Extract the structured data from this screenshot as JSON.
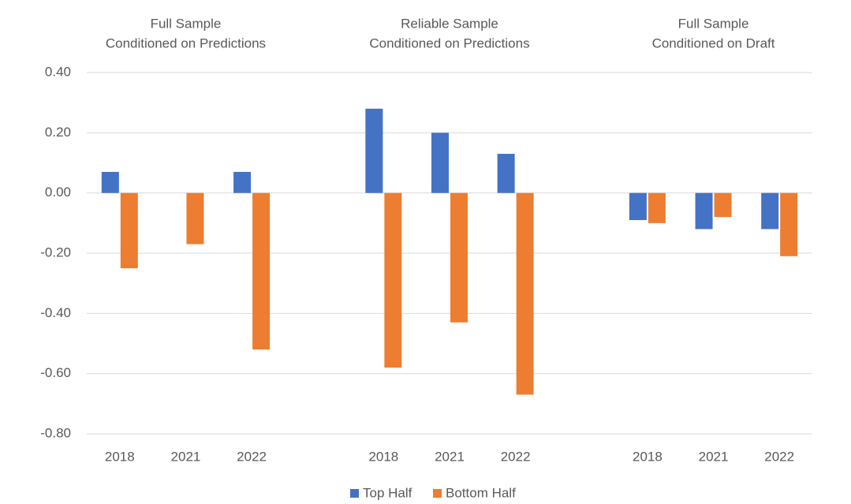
{
  "chart_data": {
    "type": "bar",
    "panels": [
      {
        "title": [
          "Full Sample",
          "Conditioned on Predictions"
        ]
      },
      {
        "title": [
          "Reliable Sample",
          "Conditioned on Predictions"
        ]
      },
      {
        "title": [
          "Full Sample",
          "Conditioned on Draft"
        ]
      }
    ],
    "categories": [
      "2018",
      "2021",
      "2022",
      "2018",
      "2021",
      "2022",
      "2018",
      "2021",
      "2022"
    ],
    "series": [
      {
        "name": "Top Half",
        "color": "#4472c4",
        "values": [
          0.07,
          0,
          0.07,
          0.28,
          0.2,
          0.13,
          -0.09,
          -0.12,
          -0.12
        ]
      },
      {
        "name": "Bottom Half",
        "color": "#ed7d31",
        "values": [
          -0.25,
          -0.17,
          -0.52,
          -0.58,
          -0.43,
          -0.67,
          -0.1,
          -0.08,
          -0.21
        ]
      }
    ],
    "ylim": [
      -0.8,
      0.4
    ],
    "yticks": [
      {
        "value": 0.4,
        "label": "0.40"
      },
      {
        "value": 0.2,
        "label": "0.20"
      },
      {
        "value": 0,
        "label": "0.00"
      },
      {
        "value": -0.2,
        "label": "-0.20"
      },
      {
        "value": -0.4,
        "label": "-0.40"
      },
      {
        "value": -0.6,
        "label": "-0.60"
      },
      {
        "value": -0.8,
        "label": "-0.80"
      }
    ],
    "grid": true,
    "legend": "bottom"
  }
}
